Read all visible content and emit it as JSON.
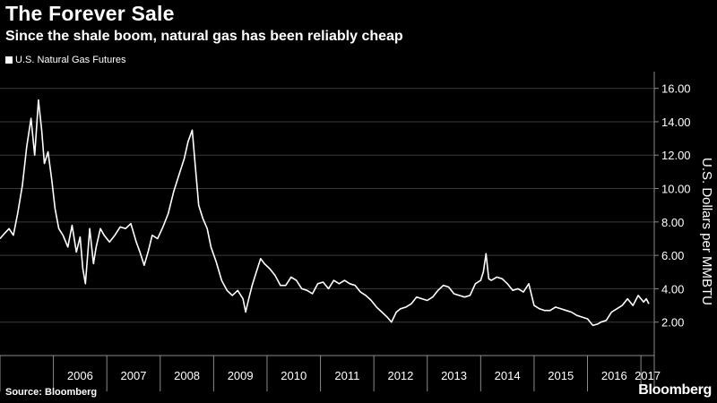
{
  "header": {
    "title": "The Forever Sale",
    "subtitle": "Since the shale boom, natural gas has been reliably cheap"
  },
  "footer": {
    "source": "Source: Bloomberg",
    "brand": "Bloomberg"
  },
  "colors": {
    "background": "#000000",
    "line": "#ffffff",
    "grid": "#3a3a3a",
    "axis": "#8a8a8a"
  },
  "chart_data": {
    "type": "line",
    "title": "The Forever Sale",
    "subtitle": "Since the shale boom, natural gas has been reliably cheap",
    "xlabel": "",
    "ylabel": "U.S. Dollars per MMBTU",
    "legend": "top-left",
    "grid": true,
    "xlim": [
      2005.0,
      2017.25
    ],
    "ylim": [
      0,
      17
    ],
    "yticks": [
      2,
      4,
      6,
      8,
      10,
      12,
      14,
      16
    ],
    "ytick_labels": [
      "2.00",
      "4.00",
      "6.00",
      "8.00",
      "10.00",
      "12.00",
      "14.00",
      "16.00"
    ],
    "xticks": [
      2006,
      2007,
      2008,
      2009,
      2010,
      2011,
      2012,
      2013,
      2014,
      2015,
      2016,
      2017
    ],
    "xtick_labels": [
      "2006",
      "2007",
      "2008",
      "2009",
      "2010",
      "2011",
      "2012",
      "2013",
      "2014",
      "2015",
      "2016",
      "2017"
    ],
    "series": [
      {
        "name": "U.S. Natural Gas Futures",
        "x": [
          2005.0,
          2005.08,
          2005.17,
          2005.25,
          2005.33,
          2005.42,
          2005.5,
          2005.58,
          2005.65,
          2005.72,
          2005.78,
          2005.83,
          2005.9,
          2005.97,
          2006.03,
          2006.1,
          2006.18,
          2006.27,
          2006.35,
          2006.43,
          2006.5,
          2006.55,
          2006.6,
          2006.68,
          2006.75,
          2006.8,
          2006.88,
          2006.95,
          2007.05,
          2007.15,
          2007.25,
          2007.35,
          2007.45,
          2007.55,
          2007.62,
          2007.7,
          2007.78,
          2007.85,
          2007.95,
          2008.05,
          2008.15,
          2008.25,
          2008.35,
          2008.45,
          2008.52,
          2008.6,
          2008.65,
          2008.72,
          2008.8,
          2008.88,
          2008.95,
          2009.05,
          2009.15,
          2009.25,
          2009.35,
          2009.45,
          2009.55,
          2009.6,
          2009.65,
          2009.72,
          2009.8,
          2009.88,
          2009.95,
          2010.05,
          2010.15,
          2010.25,
          2010.35,
          2010.45,
          2010.55,
          2010.65,
          2010.75,
          2010.85,
          2010.95,
          2011.05,
          2011.15,
          2011.25,
          2011.35,
          2011.45,
          2011.55,
          2011.65,
          2011.75,
          2011.85,
          2011.95,
          2012.05,
          2012.15,
          2012.25,
          2012.33,
          2012.42,
          2012.5,
          2012.6,
          2012.7,
          2012.8,
          2012.9,
          2013.0,
          2013.1,
          2013.2,
          2013.3,
          2013.4,
          2013.5,
          2013.6,
          2013.7,
          2013.8,
          2013.9,
          2014.0,
          2014.05,
          2014.1,
          2014.15,
          2014.2,
          2014.3,
          2014.4,
          2014.5,
          2014.6,
          2014.7,
          2014.8,
          2014.9,
          2015.0,
          2015.1,
          2015.2,
          2015.3,
          2015.4,
          2015.5,
          2015.6,
          2015.7,
          2015.8,
          2015.9,
          2016.0,
          2016.1,
          2016.2,
          2016.25,
          2016.35,
          2016.45,
          2016.55,
          2016.65,
          2016.75,
          2016.85,
          2016.95,
          2017.0,
          2017.05,
          2017.1,
          2017.15
        ],
        "values": [
          7.0,
          7.3,
          7.6,
          7.2,
          8.5,
          10.2,
          12.5,
          14.2,
          12.0,
          15.3,
          13.5,
          11.5,
          12.2,
          10.5,
          8.8,
          7.6,
          7.2,
          6.5,
          7.8,
          6.2,
          7.1,
          5.2,
          4.3,
          7.6,
          5.5,
          6.5,
          7.6,
          7.2,
          6.8,
          7.2,
          7.7,
          7.6,
          7.9,
          6.8,
          6.2,
          5.4,
          6.3,
          7.2,
          7.0,
          7.7,
          8.5,
          9.8,
          10.8,
          11.8,
          12.8,
          13.5,
          11.6,
          9.0,
          8.2,
          7.6,
          6.5,
          5.6,
          4.5,
          3.9,
          3.6,
          3.9,
          3.4,
          2.6,
          3.3,
          4.2,
          5.0,
          5.8,
          5.5,
          5.2,
          4.8,
          4.2,
          4.2,
          4.7,
          4.5,
          4.0,
          3.9,
          3.7,
          4.3,
          4.4,
          4.0,
          4.5,
          4.3,
          4.5,
          4.3,
          4.2,
          3.8,
          3.6,
          3.3,
          2.9,
          2.6,
          2.3,
          2.0,
          2.6,
          2.8,
          2.9,
          3.1,
          3.5,
          3.4,
          3.3,
          3.5,
          3.9,
          4.2,
          4.1,
          3.7,
          3.6,
          3.5,
          3.6,
          4.3,
          4.5,
          5.0,
          6.1,
          4.6,
          4.5,
          4.7,
          4.6,
          4.3,
          3.9,
          4.0,
          3.8,
          4.3,
          3.0,
          2.8,
          2.7,
          2.7,
          2.9,
          2.8,
          2.7,
          2.6,
          2.4,
          2.3,
          2.2,
          1.8,
          1.9,
          2.0,
          2.1,
          2.6,
          2.8,
          3.0,
          3.4,
          3.0,
          3.6,
          3.4,
          3.2,
          3.4,
          3.1
        ]
      }
    ]
  }
}
